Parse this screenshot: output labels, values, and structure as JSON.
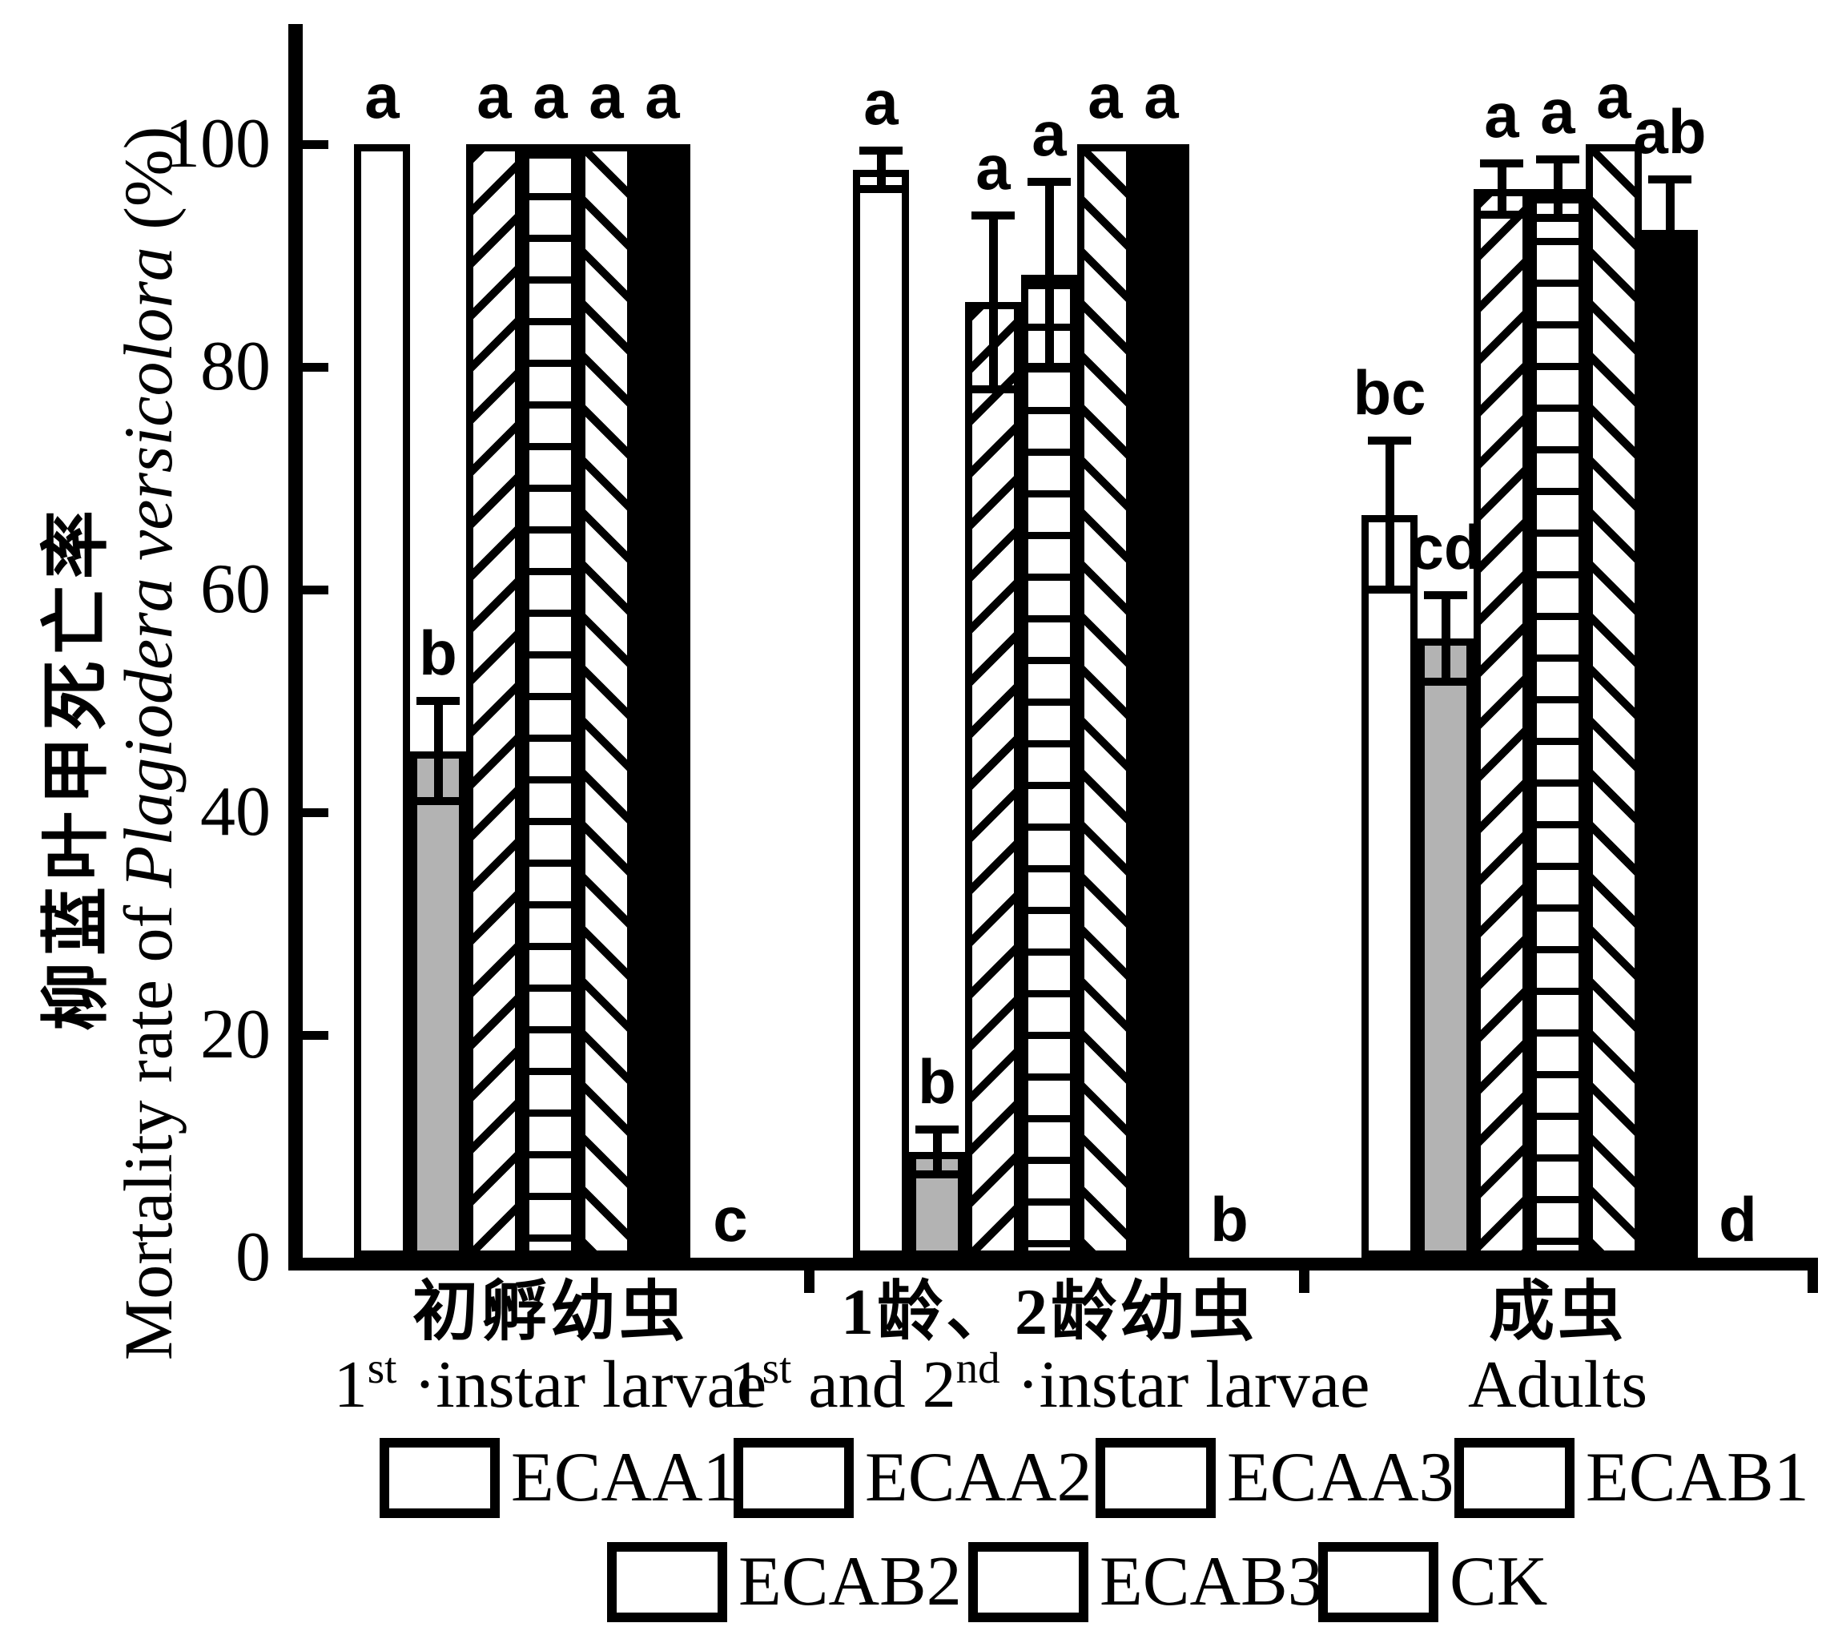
{
  "figure": {
    "background": "#ffffff",
    "ink": "#000000",
    "bar_gray": "#b3b3b3"
  },
  "y_axis": {
    "label_zh": "柳蓝叶甲死亡率",
    "label_en_prefix": "Mortality rate of ",
    "label_en_italic": "Plagiodera versicolora",
    "label_en_suffix": " (%)",
    "tick_labels": [
      "0",
      "20",
      "40",
      "60",
      "80",
      "100"
    ]
  },
  "x_axis": {
    "groups": [
      {
        "zh": "初孵幼虫",
        "en_segments": [
          {
            "t": "1"
          },
          {
            "sup": "st"
          },
          {
            "t": " ·instar larvae"
          }
        ]
      },
      {
        "zh": "1龄、2龄幼虫",
        "en_segments": [
          {
            "t": "1"
          },
          {
            "sup": "st"
          },
          {
            "t": " and 2"
          },
          {
            "sup": "nd"
          },
          {
            "t": " ·instar larvae"
          }
        ]
      },
      {
        "zh": "成虫",
        "en_segments": [
          {
            "t": "Adults"
          }
        ]
      }
    ]
  },
  "legend": {
    "row1": [
      "ECAA1",
      "ECAA2",
      "ECAA3",
      "ECAB1"
    ],
    "row2": [
      "ECAB2",
      "ECAB3",
      "CK"
    ]
  },
  "chart_data": {
    "type": "bar",
    "title": "",
    "ylabel": "柳蓝叶甲死亡率 Mortality rate of Plagiodera versicolora (%)",
    "xlabel": "",
    "ylim": [
      0,
      112
    ],
    "yticks": [
      0,
      20,
      40,
      60,
      80,
      100
    ],
    "grid": false,
    "legend_position": "bottom",
    "categories": [
      "初孵幼虫 1st instar larvae",
      "1龄、2龄幼虫 1st and 2nd instar larvae",
      "成虫 Adults"
    ],
    "series": [
      {
        "name": "ECAA1",
        "pattern": "white",
        "values": [
          100,
          97.7,
          66.7
        ],
        "errors": [
          0,
          1.7,
          6.7
        ],
        "sig_letters": [
          "a",
          "a",
          "bc"
        ]
      },
      {
        "name": "ECAA2",
        "pattern": "gray",
        "values": [
          45.5,
          9.5,
          55.6
        ],
        "errors": [
          4.5,
          2,
          3.9
        ],
        "sig_letters": [
          "b",
          "b",
          "cd"
        ]
      },
      {
        "name": "ECAA3",
        "pattern": "hatch-forward-diagonal",
        "values": [
          100,
          85.8,
          96
        ],
        "errors": [
          0,
          7.8,
          2.3
        ],
        "sig_letters": [
          "a",
          "a",
          "a"
        ]
      },
      {
        "name": "ECAB1",
        "pattern": "hatch-horizontal",
        "values": [
          100,
          88.3,
          96
        ],
        "errors": [
          0,
          8.3,
          2.6
        ],
        "sig_letters": [
          "a",
          "a",
          "a"
        ]
      },
      {
        "name": "ECAB2",
        "pattern": "hatch-back-diagonal",
        "values": [
          100,
          100,
          100
        ],
        "errors": [
          0,
          0,
          0
        ],
        "sig_letters": [
          "a",
          "a",
          "a"
        ]
      },
      {
        "name": "ECAB3",
        "pattern": "black",
        "values": [
          100,
          100,
          92.3
        ],
        "errors": [
          0,
          0,
          4.5
        ],
        "sig_letters": [
          "a",
          "a",
          "ab"
        ]
      },
      {
        "name": "CK",
        "pattern": "hatch-vertical",
        "values": [
          0,
          0,
          0
        ],
        "errors": [
          0,
          0,
          0
        ],
        "sig_letters": [
          "c",
          "b",
          "d"
        ]
      }
    ]
  }
}
